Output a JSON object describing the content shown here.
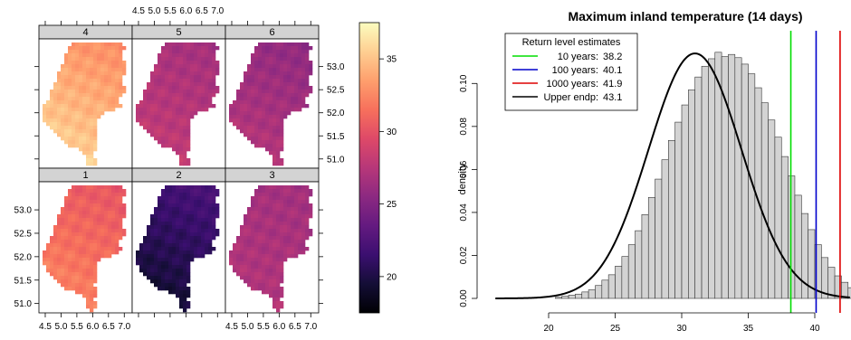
{
  "chart_data": [
    {
      "type": "heatmap",
      "panels": [
        {
          "label": "4",
          "mean_level": 33.5,
          "north_level": 32.5,
          "south_level": 36.5
        },
        {
          "label": "5",
          "mean_level": 27.5,
          "north_level": 26.5,
          "south_level": 28.5
        },
        {
          "label": "6",
          "mean_level": 26.5,
          "north_level": 25.5,
          "south_level": 28.0
        },
        {
          "label": "1",
          "mean_level": 31.0,
          "north_level": 30.0,
          "south_level": 33.0
        },
        {
          "label": "2",
          "mean_level": 21.5,
          "north_level": 22.5,
          "south_level": 18.5
        },
        {
          "label": "3",
          "mean_level": 27.0,
          "north_level": 26.5,
          "south_level": 27.5
        }
      ],
      "x_ticks": [
        "4.5",
        "5.0",
        "5.5",
        "6.0",
        "6.5",
        "7.0"
      ],
      "y_ticks": [
        "51.0",
        "51.5",
        "52.0",
        "52.5",
        "53.0"
      ],
      "xlim": [
        4.3,
        7.25
      ],
      "ylim": [
        50.8,
        53.6
      ],
      "colorbar": {
        "ticks": [
          "20",
          "25",
          "30",
          "35"
        ],
        "range": [
          17.5,
          37.5
        ],
        "colormap": "magma"
      }
    },
    {
      "type": "bar",
      "title": "Maximum inland temperature (14 days)",
      "xlabel": "",
      "ylabel": "density",
      "xlim": [
        16,
        43
      ],
      "ylim": [
        0,
        0.122
      ],
      "x_ticks": [
        "20",
        "25",
        "30",
        "35",
        "40"
      ],
      "y_ticks": [
        "0.00",
        "0.02",
        "0.04",
        "0.06",
        "0.08",
        "0.10"
      ],
      "histogram": {
        "bin_width": 0.5,
        "bin_start": 20.5,
        "values": [
          0.0005,
          0.001,
          0.0015,
          0.002,
          0.003,
          0.004,
          0.006,
          0.0085,
          0.011,
          0.015,
          0.0195,
          0.025,
          0.0315,
          0.039,
          0.047,
          0.0555,
          0.0645,
          0.0735,
          0.082,
          0.09,
          0.097,
          0.103,
          0.108,
          0.1115,
          0.1145,
          0.1125,
          0.1135,
          0.112,
          0.109,
          0.1045,
          0.098,
          0.091,
          0.083,
          0.075,
          0.066,
          0.057,
          0.048,
          0.0395,
          0.032,
          0.025,
          0.019,
          0.0145,
          0.0105,
          0.0075,
          0.005,
          0.003,
          0.0018,
          0.001,
          0.0005,
          0.0003
        ]
      },
      "density_curve": {
        "mean": 31.0,
        "sd": 3.5,
        "x_range": [
          16,
          43
        ]
      },
      "return_levels": [
        {
          "label": "10 years:",
          "value": "38.2",
          "x": 38.2,
          "color": "#00dd00"
        },
        {
          "label": "100 years:",
          "value": "40.1",
          "x": 40.1,
          "color": "#0000cc"
        },
        {
          "label": "1000 years:",
          "value": "41.9",
          "x": 41.9,
          "color": "#dd0000"
        },
        {
          "label": "Upper endp:",
          "value": "43.1",
          "x": 43.1,
          "color": "#000000"
        }
      ],
      "legend": {
        "title": "Return level estimates",
        "placement": "top-left"
      }
    }
  ]
}
